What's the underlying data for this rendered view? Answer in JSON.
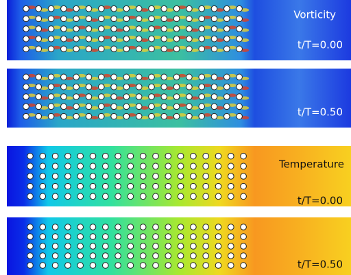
{
  "panels": [
    {
      "field": "Vorticity",
      "time": "t/T=0.00"
    },
    {
      "time": "t/T=0.50"
    },
    {
      "field": "Temperature",
      "time": "t/T=0.00"
    },
    {
      "time": "t/T=0.50"
    }
  ]
}
